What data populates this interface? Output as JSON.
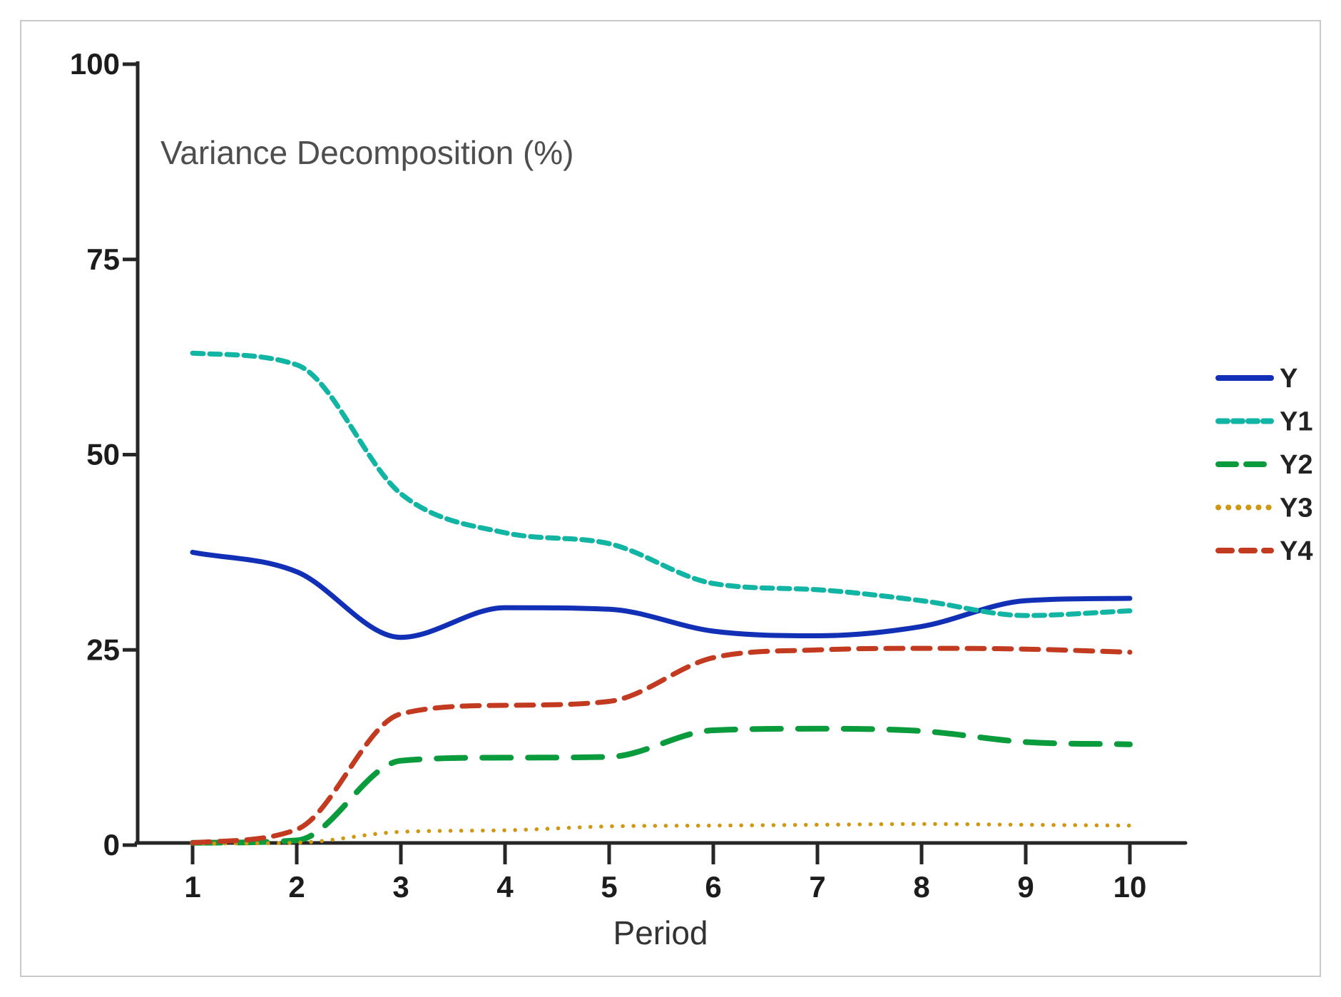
{
  "figure": {
    "title": "Variance Decomposition  (%)",
    "xlabel": "Period"
  },
  "chart_data": {
    "type": "line",
    "title": "Variance Decomposition (%)",
    "xlabel": "Period",
    "ylabel": "",
    "x": [
      1,
      2,
      3,
      4,
      5,
      6,
      7,
      8,
      9,
      10
    ],
    "ylim": [
      0,
      100
    ],
    "yticks": [
      0,
      25,
      50,
      75,
      100
    ],
    "grid": false,
    "legend_position": "right",
    "series": [
      {
        "name": "Y",
        "color": "#1130b5",
        "line_style": "solid",
        "width": 7,
        "values": [
          37.5,
          35.0,
          26.6,
          30.4,
          30.2,
          27.4,
          26.8,
          28.0,
          31.3,
          31.6
        ]
      },
      {
        "name": "Y1",
        "color": "#12b5a3",
        "line_style": "dash-short",
        "width": 7,
        "values": [
          63.0,
          61.5,
          45.0,
          40.0,
          38.6,
          33.5,
          32.7,
          31.3,
          29.4,
          30.0
        ]
      },
      {
        "name": "Y2",
        "color": "#0a9b3d",
        "line_style": "dash-long",
        "width": 8,
        "values": [
          0.3,
          0.6,
          10.8,
          11.2,
          11.3,
          14.7,
          14.9,
          14.6,
          13.2,
          12.9
        ]
      },
      {
        "name": "Y3",
        "color": "#cf9712",
        "line_style": "dot",
        "width": 5.5,
        "values": [
          0.2,
          0.3,
          1.7,
          1.9,
          2.4,
          2.5,
          2.6,
          2.7,
          2.6,
          2.5
        ]
      },
      {
        "name": "Y4",
        "color": "#c23b20",
        "line_style": "dash-medium",
        "width": 7,
        "values": [
          0.3,
          2.0,
          16.8,
          17.9,
          18.4,
          24.0,
          25.0,
          25.2,
          25.1,
          24.7
        ]
      }
    ]
  },
  "axes": {
    "x_tick_labels": [
      "1",
      "2",
      "3",
      "4",
      "5",
      "6",
      "7",
      "8",
      "9",
      "10"
    ],
    "y_tick_labels": [
      "0",
      "25",
      "50",
      "75",
      "100"
    ]
  },
  "colors": {
    "axis": "#262626",
    "tick_text": "#1c1c1c",
    "title_text": "#4e4e4e",
    "xlabel_text": "#333333",
    "legend_text": "#222222",
    "frame_border": "#c9c9c9",
    "background": "#ffffff"
  }
}
